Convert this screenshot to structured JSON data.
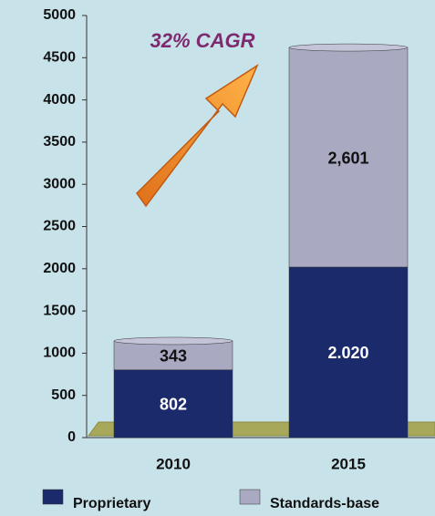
{
  "chart_data": {
    "type": "stacked_bar",
    "annotation": "32% CAGR",
    "categories": [
      "2010",
      "2015"
    ],
    "series": [
      {
        "name": "Proprietary",
        "color": "#1b2a6b",
        "values": [
          802,
          2020
        ],
        "value_labels": [
          "802",
          "2.020"
        ]
      },
      {
        "name": "Standards-base",
        "color": "#a9a9c2",
        "values": [
          343,
          2601
        ],
        "value_labels": [
          "343",
          "2,601"
        ]
      }
    ],
    "ylim": [
      0,
      5000
    ],
    "yticks": [
      0,
      500,
      1000,
      1500,
      2000,
      2500,
      3000,
      3500,
      4000,
      4500,
      5000
    ]
  }
}
